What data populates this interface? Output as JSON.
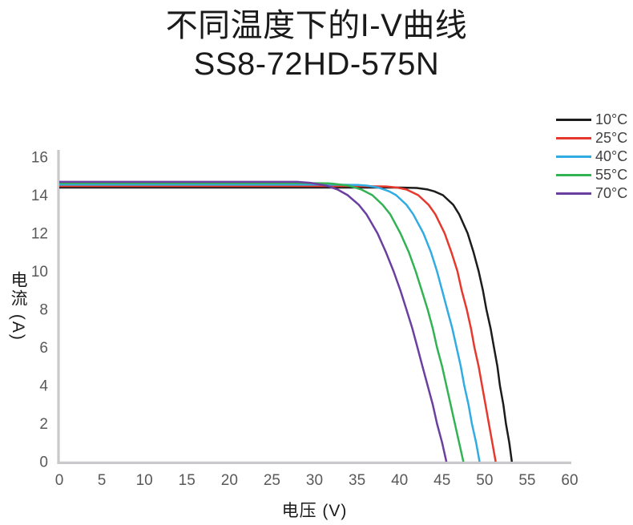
{
  "title": {
    "line1": "不同温度下的I-V曲线",
    "line2": "SS8-72HD-575N"
  },
  "chart_data": {
    "type": "line",
    "title": "不同温度下的I-V曲线 SS8-72HD-575N",
    "xlabel": "电压 (V)",
    "ylabel": "电流 (A)",
    "xlim": [
      0,
      60
    ],
    "ylim": [
      0,
      16
    ],
    "x_ticks": [
      0,
      5,
      10,
      15,
      20,
      25,
      30,
      35,
      40,
      45,
      50,
      55,
      60
    ],
    "y_ticks": [
      0,
      2,
      4,
      6,
      8,
      10,
      12,
      14,
      16
    ],
    "grid": false,
    "legend_position": "top-right",
    "series": [
      {
        "name": "10°C",
        "color": "#1c1c1c",
        "isc_a": 14.4,
        "voc_v": 53.2,
        "points": [
          [
            0,
            14.4
          ],
          [
            10,
            14.4
          ],
          [
            20,
            14.4
          ],
          [
            30,
            14.4
          ],
          [
            36,
            14.4
          ],
          [
            40,
            14.4
          ],
          [
            42,
            14.38
          ],
          [
            43.3,
            14.3
          ],
          [
            44.1,
            14.2
          ],
          [
            45.1,
            14.0
          ],
          [
            46.3,
            13.5
          ],
          [
            47.0,
            13.0
          ],
          [
            48.0,
            12.0
          ],
          [
            48.7,
            11.0
          ],
          [
            49.3,
            10.0
          ],
          [
            49.8,
            9.0
          ],
          [
            50.2,
            8.0
          ],
          [
            50.7,
            7.0
          ],
          [
            51.1,
            6.0
          ],
          [
            51.5,
            5.0
          ],
          [
            51.8,
            4.0
          ],
          [
            52.2,
            3.0
          ],
          [
            52.5,
            2.0
          ],
          [
            52.9,
            1.0
          ],
          [
            53.2,
            0
          ]
        ]
      },
      {
        "name": "25°C",
        "color": "#e6382c",
        "isc_a": 14.48,
        "voc_v": 51.3,
        "points": [
          [
            0,
            14.48
          ],
          [
            10,
            14.48
          ],
          [
            20,
            14.48
          ],
          [
            30,
            14.48
          ],
          [
            34,
            14.48
          ],
          [
            38.4,
            14.46
          ],
          [
            39.7,
            14.4
          ],
          [
            40.8,
            14.3
          ],
          [
            42.2,
            14.0
          ],
          [
            43.4,
            13.5
          ],
          [
            44.2,
            13.0
          ],
          [
            45.3,
            12.0
          ],
          [
            46.1,
            11.0
          ],
          [
            46.8,
            10.0
          ],
          [
            47.3,
            9.0
          ],
          [
            47.9,
            8.0
          ],
          [
            48.4,
            7.0
          ],
          [
            48.8,
            6.0
          ],
          [
            49.3,
            5.0
          ],
          [
            49.7,
            4.0
          ],
          [
            50.1,
            3.0
          ],
          [
            50.5,
            2.0
          ],
          [
            50.9,
            1.0
          ],
          [
            51.3,
            0
          ]
        ]
      },
      {
        "name": "40°C",
        "color": "#30ace2",
        "isc_a": 14.55,
        "voc_v": 49.4,
        "points": [
          [
            0,
            14.55
          ],
          [
            10,
            14.55
          ],
          [
            20,
            14.55
          ],
          [
            28,
            14.55
          ],
          [
            32,
            14.55
          ],
          [
            35.1,
            14.54
          ],
          [
            36.2,
            14.5
          ],
          [
            37.5,
            14.4
          ],
          [
            38.8,
            14.2
          ],
          [
            39.6,
            14.0
          ],
          [
            40.8,
            13.5
          ],
          [
            41.6,
            13.0
          ],
          [
            42.8,
            12.0
          ],
          [
            43.7,
            11.0
          ],
          [
            44.4,
            10.0
          ],
          [
            45.0,
            9.0
          ],
          [
            45.6,
            8.0
          ],
          [
            46.2,
            7.0
          ],
          [
            46.7,
            6.0
          ],
          [
            47.2,
            5.0
          ],
          [
            47.6,
            4.0
          ],
          [
            48.1,
            3.0
          ],
          [
            48.5,
            2.0
          ],
          [
            49.0,
            1.0
          ],
          [
            49.4,
            0
          ]
        ]
      },
      {
        "name": "55°C",
        "color": "#33b254",
        "isc_a": 14.63,
        "voc_v": 47.5,
        "points": [
          [
            0,
            14.63
          ],
          [
            10,
            14.63
          ],
          [
            20,
            14.63
          ],
          [
            26,
            14.63
          ],
          [
            29,
            14.63
          ],
          [
            31.6,
            14.62
          ],
          [
            32.2,
            14.6
          ],
          [
            34.0,
            14.5
          ],
          [
            35.5,
            14.3
          ],
          [
            36.8,
            14.0
          ],
          [
            38.0,
            13.5
          ],
          [
            38.9,
            13.0
          ],
          [
            40.1,
            12.0
          ],
          [
            41.1,
            11.0
          ],
          [
            41.9,
            10.0
          ],
          [
            42.6,
            9.0
          ],
          [
            43.3,
            8.0
          ],
          [
            43.9,
            7.0
          ],
          [
            44.4,
            6.0
          ],
          [
            45.0,
            5.0
          ],
          [
            45.5,
            4.0
          ],
          [
            46.0,
            3.0
          ],
          [
            46.5,
            2.0
          ],
          [
            47.0,
            1.0
          ],
          [
            47.5,
            0
          ]
        ]
      },
      {
        "name": "70°C",
        "color": "#6b3fa0",
        "isc_a": 14.7,
        "voc_v": 45.5,
        "points": [
          [
            0,
            14.7
          ],
          [
            8,
            14.7
          ],
          [
            16,
            14.7
          ],
          [
            22,
            14.7
          ],
          [
            26,
            14.7
          ],
          [
            28.0,
            14.7
          ],
          [
            29.5,
            14.65
          ],
          [
            31.4,
            14.5
          ],
          [
            32.7,
            14.3
          ],
          [
            33.9,
            14.0
          ],
          [
            35.2,
            13.5
          ],
          [
            36.1,
            13.0
          ],
          [
            37.4,
            12.0
          ],
          [
            38.4,
            11.0
          ],
          [
            39.3,
            10.0
          ],
          [
            40.1,
            9.0
          ],
          [
            40.8,
            8.0
          ],
          [
            41.5,
            7.0
          ],
          [
            42.1,
            6.0
          ],
          [
            42.7,
            5.0
          ],
          [
            43.3,
            4.0
          ],
          [
            43.9,
            3.0
          ],
          [
            44.4,
            2.0
          ],
          [
            45.0,
            1.0
          ],
          [
            45.5,
            0
          ]
        ]
      }
    ]
  },
  "colors": {
    "background": "#ffffff",
    "axis_line": "#c9c9cb",
    "tick_text": "#595959",
    "axis_title_text": "#1a1a1a",
    "title_text": "#1a1a1a",
    "legend_text": "#404040"
  }
}
